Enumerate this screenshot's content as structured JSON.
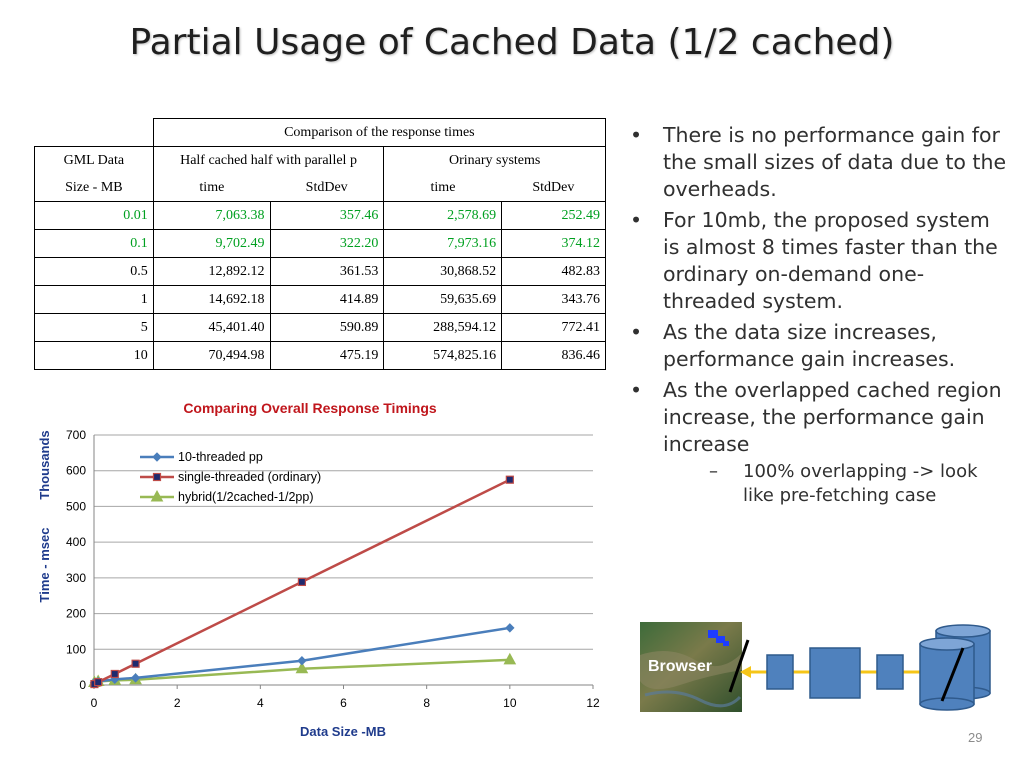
{
  "title": "Partial Usage of Cached Data (1/2 cached)",
  "table": {
    "caption": "Comparison of the response times",
    "col_gml_1": "GML Data",
    "col_gml_2": "Size - MB",
    "group_half": "Half cached half with parallel p",
    "group_ord": "Orinary systems",
    "sub_time": "time",
    "sub_stddev": "StdDev",
    "rows": [
      {
        "size": "0.01",
        "h_time": "7,063.38",
        "h_sd": "357.46",
        "o_time": "2,578.69",
        "o_sd": "252.49"
      },
      {
        "size": "0.1",
        "h_time": "9,702.49",
        "h_sd": "322.20",
        "o_time": "7,973.16",
        "o_sd": "374.12"
      },
      {
        "size": "0.5",
        "h_time": "12,892.12",
        "h_sd": "361.53",
        "o_time": "30,868.52",
        "o_sd": "482.83"
      },
      {
        "size": "1",
        "h_time": "14,692.18",
        "h_sd": "414.89",
        "o_time": "59,635.69",
        "o_sd": "343.76"
      },
      {
        "size": "5",
        "h_time": "45,401.40",
        "h_sd": "590.89",
        "o_time": "288,594.12",
        "o_sd": "772.41"
      },
      {
        "size": "10",
        "h_time": "70,494.98",
        "h_sd": "475.19",
        "o_time": "574,825.16",
        "o_sd": "836.46"
      }
    ]
  },
  "chart_data": {
    "type": "line",
    "title": "Comparing Overall Response Timings",
    "xlabel": "Data Size -MB",
    "ylabel": "Time - msec",
    "ylabel_unit": "Thousands",
    "xlim": [
      0,
      12
    ],
    "ylim": [
      0,
      700
    ],
    "xticks": [
      0,
      2,
      4,
      6,
      8,
      10,
      12
    ],
    "yticks": [
      0,
      100,
      200,
      300,
      400,
      500,
      600,
      700
    ],
    "grid": "horizontal",
    "legend_position": "top-left",
    "x": [
      0.01,
      0.1,
      0.5,
      1,
      5,
      10
    ],
    "series": [
      {
        "name": "10-threaded pp",
        "color": "#4a7ebb",
        "marker": "diamond",
        "values": [
          7.1,
          9.7,
          15.9,
          20.0,
          68.0,
          160.0
        ]
      },
      {
        "name": "single-threaded (ordinary)",
        "color": "#be4b48",
        "marker": "square",
        "values": [
          2.6,
          8.0,
          30.9,
          59.6,
          288.6,
          574.8
        ]
      },
      {
        "name": "hybrid(1/2cached-1/2pp)",
        "color": "#98b954",
        "marker": "triangle",
        "values": [
          7.1,
          9.7,
          12.9,
          14.7,
          45.4,
          70.5
        ]
      }
    ]
  },
  "bullets": [
    {
      "text": "There is no performance gain for the small sizes of data due to the overheads."
    },
    {
      "text": "For 10mb, the proposed system is almost 8 times faster than the ordinary on-demand one-threaded system."
    },
    {
      "text": "As the data size increases, performance gain increases."
    },
    {
      "text": "As the overlapped cached region increase, the performance gain increase",
      "sub": "100% overlapping -> look like pre-fetching case"
    }
  ],
  "diagram": {
    "browser_label": "Browser",
    "box_color": "#4f81bd",
    "arrow_color": "#f5c518"
  },
  "slide_number": "29"
}
